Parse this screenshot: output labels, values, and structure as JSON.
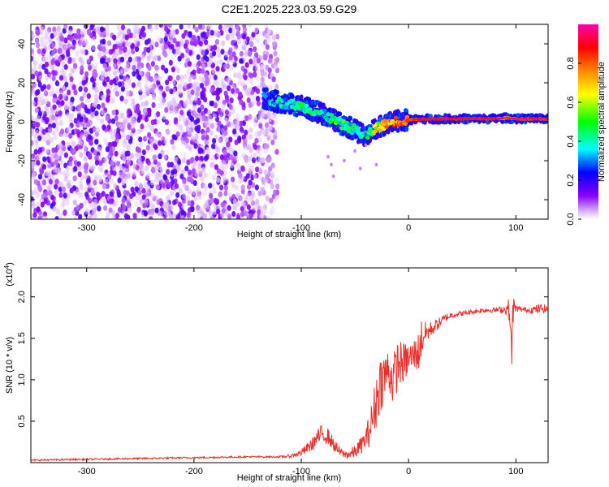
{
  "title": "C2E1.2025.223.03.59.G29",
  "chart_data": [
    {
      "type": "heatmap",
      "xlabel": "Height of straight line (km)",
      "ylabel": "Frequency (Hz)",
      "xlim": [
        -352,
        130
      ],
      "ylim": [
        -50,
        50
      ],
      "x_ticks": [
        -300,
        -200,
        -100,
        0,
        100
      ],
      "x_tick_labels": [
        "-300",
        "-200",
        "-100",
        "0",
        "100"
      ],
      "y_ticks": [
        -40,
        -20,
        0,
        20,
        40
      ],
      "y_tick_labels": [
        "-40",
        "-20",
        "0",
        "20",
        "40"
      ],
      "colorbar": {
        "label": "Normalized spectral amplitude",
        "range": [
          0,
          1
        ],
        "ticks": [
          0.0,
          0.2,
          0.4,
          0.6,
          0.8
        ],
        "tick_labels": [
          "0.0",
          "0.2",
          "0.4",
          "0.6",
          "0.8"
        ],
        "colormap": [
          "#ffffff",
          "#8800ff",
          "#0000ff",
          "#00ffff",
          "#00ff00",
          "#ffff00",
          "#ff8800",
          "#ff0000",
          "#ff00aa"
        ]
      },
      "noise_region_x": [
        -352,
        -130
      ],
      "ridge": {
        "x": [
          -135,
          -120,
          -100,
          -80,
          -60,
          -50,
          -40,
          -30,
          -15,
          0,
          20,
          50,
          80,
          92,
          100,
          130
        ],
        "freq": [
          12,
          10,
          8,
          4,
          -2,
          -4,
          -8,
          -3,
          0,
          1,
          1.5,
          1.5,
          1.5,
          2,
          1.5,
          1.5
        ],
        "amplitude": [
          0.3,
          0.35,
          0.4,
          0.4,
          0.45,
          0.4,
          0.35,
          0.6,
          0.75,
          0.8,
          0.85,
          0.85,
          0.85,
          0.7,
          0.8,
          0.8
        ]
      }
    },
    {
      "type": "line",
      "xlabel": "Height of straight line (km)",
      "ylabel": "SNR (10 * v/v)",
      "yscale_label": "(x10",
      "yscale_exp": "4",
      "xlim": [
        -352,
        130
      ],
      "ylim": [
        0,
        2.35
      ],
      "x_ticks": [
        -300,
        -200,
        -100,
        0,
        100
      ],
      "x_tick_labels": [
        "-300",
        "-200",
        "-100",
        "0",
        "100"
      ],
      "y_ticks": [
        0.5,
        1.0,
        1.5,
        2.0
      ],
      "y_tick_labels": [
        "0.5",
        "1.0",
        "1.5",
        "2.0"
      ],
      "color": "#e8302c",
      "series": [
        {
          "x": [
            -352,
            -300,
            -250,
            -200,
            -150,
            -120,
            -110,
            -100,
            -90,
            -85,
            -80,
            -75,
            -70,
            -65,
            -60,
            -55,
            -50,
            -45,
            -40,
            -35,
            -30,
            -27,
            -25,
            -22,
            -20,
            -18,
            -15,
            -12,
            -10,
            -5,
            0,
            5,
            10,
            12,
            15,
            20,
            25,
            30,
            35,
            40,
            50,
            60,
            70,
            80,
            90,
            94,
            96,
            97,
            100,
            110,
            120,
            125,
            130
          ],
          "y": [
            0.03,
            0.04,
            0.05,
            0.06,
            0.07,
            0.07,
            0.08,
            0.12,
            0.22,
            0.3,
            0.35,
            0.32,
            0.22,
            0.14,
            0.1,
            0.1,
            0.13,
            0.2,
            0.28,
            0.45,
            0.75,
            0.95,
            1.0,
            1.05,
            1.1,
            1.1,
            1.0,
            1.1,
            1.2,
            1.2,
            1.25,
            1.3,
            1.35,
            1.5,
            1.55,
            1.6,
            1.65,
            1.7,
            1.75,
            1.78,
            1.8,
            1.82,
            1.84,
            1.84,
            1.85,
            1.85,
            1.2,
            1.85,
            1.86,
            1.84,
            1.85,
            1.86,
            1.85
          ],
          "noise_amp": [
            0.01,
            0.01,
            0.01,
            0.01,
            0.01,
            0.01,
            0.02,
            0.04,
            0.08,
            0.1,
            0.12,
            0.1,
            0.08,
            0.06,
            0.05,
            0.06,
            0.08,
            0.1,
            0.12,
            0.25,
            0.35,
            0.35,
            0.35,
            0.3,
            0.3,
            0.3,
            0.3,
            0.3,
            0.3,
            0.25,
            0.2,
            0.2,
            0.25,
            0.25,
            0.15,
            0.1,
            0.08,
            0.06,
            0.05,
            0.04,
            0.03,
            0.03,
            0.03,
            0.03,
            0.05,
            0.15,
            0.3,
            0.2,
            0.04,
            0.03,
            0.06,
            0.06,
            0.04
          ]
        }
      ]
    }
  ]
}
